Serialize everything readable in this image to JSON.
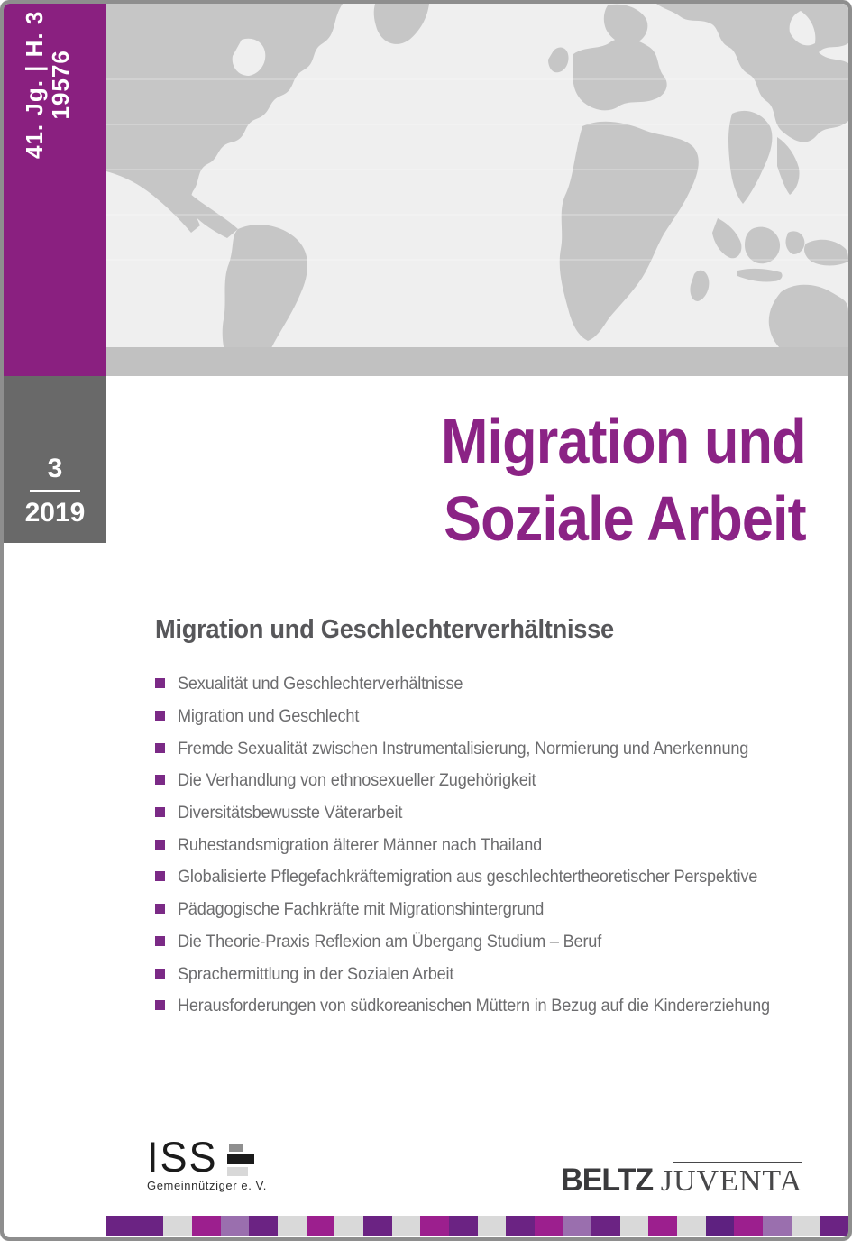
{
  "spine": {
    "issue_info": "41. Jg. | H. 3",
    "postal_number": "19576"
  },
  "issue_box": {
    "number": "3",
    "year": "2019"
  },
  "title": {
    "line1": "Migration und",
    "line2": "Soziale Arbeit"
  },
  "contents": {
    "heading": "Migration und Geschlechterverhältnisse",
    "items": [
      "Sexualität und Geschlechterverhältnisse",
      "Migration und Geschlecht",
      "Fremde Sexualität zwischen Instrumentalisierung, Normierung und Anerkennung",
      "Die Verhandlung von ethnosexueller Zugehörigkeit",
      "Diversitätsbewusste Väterarbeit",
      "Ruhestandsmigration älterer Männer nach Thailand",
      "Globalisierte Pflegefachkräftemigration aus geschlechtertheoretischer Perspektive",
      "Pädagogische Fachkräfte mit Migrationshintergrund",
      "Die Theorie-Praxis Reflexion am Übergang Studium – Beruf",
      "Sprachermittlung in der Sozialen Arbeit",
      "Herausforderungen von südkoreanischen Müttern in Bezug auf die Kindererziehung"
    ]
  },
  "publisher": {
    "iss_name": "ISS",
    "iss_subtitle": "Gemeinnütziger e. V.",
    "beltz_name": "BELTZ",
    "juventa_initial": "J",
    "juventa_rest": "UVENTA"
  },
  "colors": {
    "brand_purple": "#8a2080",
    "title_purple": "#8b2385",
    "bullet_purple": "#7b2a86",
    "issue_box_gray": "#696969",
    "heading_gray": "#57575a",
    "body_text_gray": "#6c6c6e",
    "map_land_gray": "#c6c6c6",
    "map_ocean_gray": "#efefef",
    "page_border_gray": "#8e8e8e",
    "stripe_dark_purple": "#6b2383",
    "stripe_magenta": "#9c1f8e",
    "stripe_lavender": "#9a6fae",
    "stripe_light_gray": "#d9d9d9"
  },
  "footer_stripe": [
    "#6b2383",
    "#6b2383",
    "#d9d9d9",
    "#9c1f8e",
    "#9a6fae",
    "#6b2383",
    "#d9d9d9",
    "#9c1f8e",
    "#d9d9d9",
    "#6b2383",
    "#d9d9d9",
    "#9c1f8e",
    "#6b2383",
    "#d9d9d9",
    "#6b2383",
    "#9c1f8e",
    "#9a6fae",
    "#6b2383",
    "#d9d9d9",
    "#9c1f8e",
    "#d9d9d9",
    "#5e2180",
    "#9c1f8e",
    "#9a6fae",
    "#d9d9d9",
    "#6b2383"
  ]
}
